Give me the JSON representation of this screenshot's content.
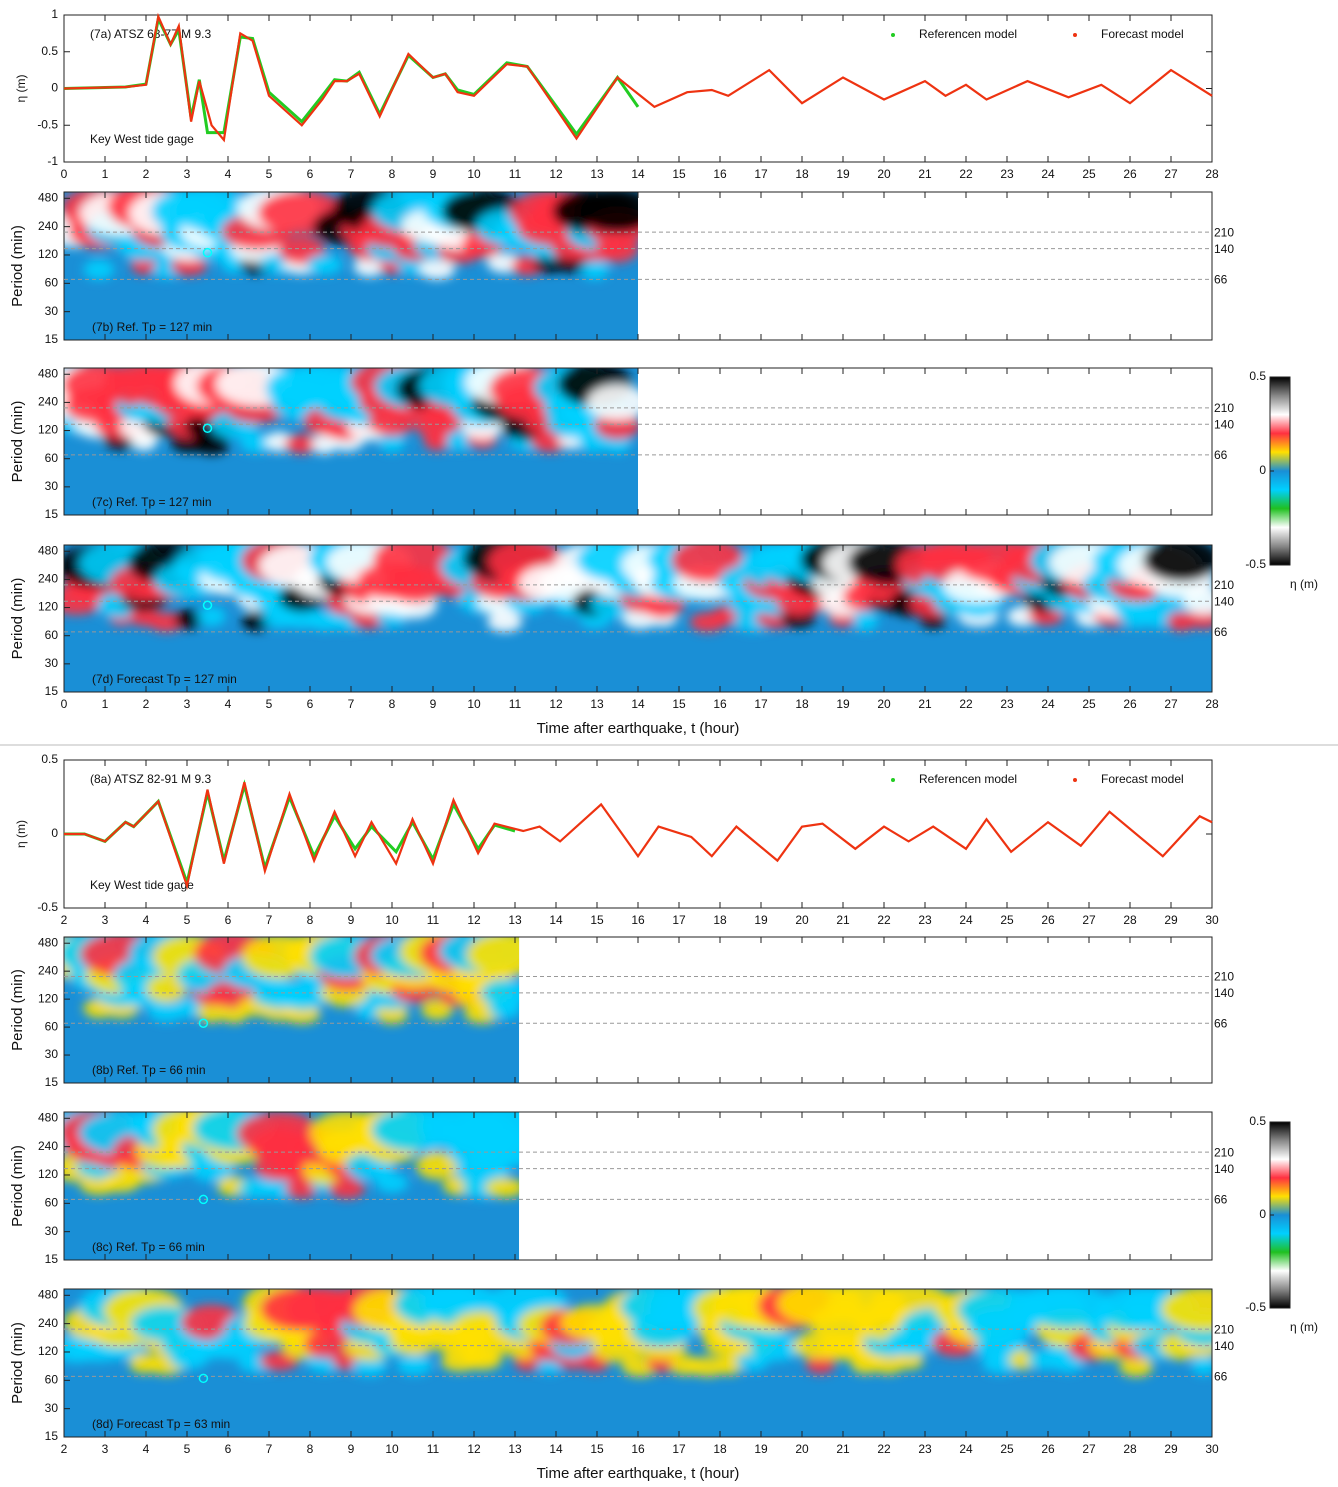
{
  "chart_data": [
    {
      "type": "line",
      "title": "(7a) ATSZ 68-77 M 9.3",
      "annotation": "Key West tide gage",
      "y_label": "η (m)",
      "xlim": [
        0,
        28
      ],
      "xticks": [
        0,
        1,
        2,
        3,
        4,
        5,
        6,
        7,
        8,
        9,
        10,
        11,
        12,
        13,
        14,
        15,
        16,
        17,
        18,
        19,
        20,
        21,
        22,
        23,
        24,
        25,
        26,
        27,
        28
      ],
      "ylim": [
        -1,
        1
      ],
      "yticks": [
        -1,
        -0.5,
        0,
        0.5,
        1
      ],
      "series": [
        {
          "name": "Referencen model",
          "color": "#22cc22",
          "x": [
            0,
            1.5,
            2.0,
            2.3,
            2.6,
            2.8,
            3.1,
            3.3,
            3.5,
            3.9,
            4.3,
            4.6,
            5.0,
            5.8,
            6.3,
            6.6,
            6.9,
            7.2,
            7.7,
            8.4,
            9.0,
            9.3,
            9.6,
            10.0,
            10.8,
            11.3,
            12.5,
            13.5,
            14.0
          ],
          "values": [
            0,
            0.02,
            0.06,
            0.95,
            0.6,
            0.8,
            -0.4,
            0.12,
            -0.6,
            -0.6,
            0.7,
            0.68,
            -0.05,
            -0.45,
            -0.1,
            0.12,
            0.1,
            0.22,
            -0.35,
            0.45,
            0.15,
            0.2,
            -0.02,
            -0.08,
            0.35,
            0.3,
            -0.62,
            0.15,
            -0.25
          ]
        },
        {
          "name": "Forecast model",
          "color": "#ee3311",
          "x": [
            0,
            1.5,
            2.0,
            2.3,
            2.6,
            2.8,
            3.1,
            3.3,
            3.6,
            3.9,
            4.3,
            4.6,
            5.0,
            5.8,
            6.3,
            6.6,
            6.9,
            7.2,
            7.7,
            8.4,
            9.0,
            9.3,
            9.6,
            10.0,
            10.8,
            11.3,
            12.5,
            13.5,
            14.4,
            15.2,
            15.8,
            16.2,
            17.2,
            18.0,
            19.0,
            20.0,
            21.0,
            21.5,
            22.0,
            22.5,
            23.5,
            24.5,
            25.3,
            26.0,
            27.0,
            28.0
          ],
          "values": [
            0,
            0.02,
            0.05,
            0.98,
            0.6,
            0.85,
            -0.45,
            0.1,
            -0.5,
            -0.7,
            0.75,
            0.65,
            -0.1,
            -0.5,
            -0.15,
            0.1,
            0.1,
            0.2,
            -0.38,
            0.47,
            0.15,
            0.2,
            -0.05,
            -0.1,
            0.33,
            0.3,
            -0.68,
            0.15,
            -0.25,
            -0.05,
            -0.02,
            -0.1,
            0.25,
            -0.2,
            0.15,
            -0.15,
            0.1,
            -0.1,
            0.05,
            -0.15,
            0.1,
            -0.12,
            0.05,
            -0.2,
            0.25,
            -0.1
          ]
        }
      ]
    },
    {
      "type": "spectrogram",
      "title": "(7b) Ref. Tp = 127 min",
      "y_label": "Period (min)",
      "xlim": [
        0,
        28
      ],
      "time_span": [
        0,
        14
      ],
      "ylim": [
        15,
        560
      ],
      "yticks": [
        15,
        30,
        60,
        120,
        240,
        480
      ],
      "log_y": true,
      "ref_lines": [
        210,
        140,
        66
      ],
      "peak": {
        "x": 3.5,
        "y": 127
      }
    },
    {
      "type": "spectrogram",
      "title": "(7c) Ref. Tp = 127 min",
      "y_label": "Period (min)",
      "xlim": [
        0,
        28
      ],
      "time_span": [
        0,
        14
      ],
      "ylim": [
        15,
        560
      ],
      "yticks": [
        15,
        30,
        60,
        120,
        240,
        480
      ],
      "log_y": true,
      "ref_lines": [
        210,
        140,
        66
      ],
      "peak": {
        "x": 3.5,
        "y": 127
      }
    },
    {
      "type": "spectrogram",
      "title": "(7d) Forecast Tp = 127 min",
      "y_label": "Period (min)",
      "x_label": "Time after earthquake,  t (hour)",
      "xlim": [
        0,
        28
      ],
      "time_span": [
        0,
        28
      ],
      "ylim": [
        15,
        560
      ],
      "yticks": [
        15,
        30,
        60,
        120,
        240,
        480
      ],
      "log_y": true,
      "ref_lines": [
        210,
        140,
        66
      ],
      "peak": {
        "x": 3.5,
        "y": 127
      }
    },
    {
      "type": "colorbar",
      "label": "η (m)",
      "ylim": [
        -0.5,
        0.5
      ],
      "yticks": [
        -0.5,
        0,
        0.5
      ],
      "colors": [
        "#000000",
        "#888888",
        "#ffffff",
        "#ff3040",
        "#ffe000",
        "#1a8fd6",
        "#00d0ff",
        "#20c020",
        "#ffffff",
        "#888888",
        "#000000"
      ]
    },
    {
      "type": "line",
      "title": "(8a) ATSZ 82-91 M 9.3",
      "annotation": "Key West tide gage",
      "y_label": "η (m)",
      "xlim": [
        2,
        30
      ],
      "xticks": [
        2,
        3,
        4,
        5,
        6,
        7,
        8,
        9,
        10,
        11,
        12,
        13,
        14,
        15,
        16,
        17,
        18,
        19,
        20,
        21,
        22,
        23,
        24,
        25,
        26,
        27,
        28,
        29,
        30
      ],
      "ylim": [
        -0.5,
        0.5
      ],
      "yticks": [
        -0.5,
        0,
        0.5
      ],
      "series": [
        {
          "name": "Referencen model",
          "color": "#22cc22",
          "x": [
            2,
            2.5,
            3,
            3.5,
            3.7,
            4.3,
            5,
            5.5,
            5.9,
            6.4,
            6.9,
            7.5,
            8.1,
            8.6,
            9.1,
            9.5,
            10.1,
            10.5,
            11.0,
            11.5,
            12.1,
            12.5,
            13.0
          ],
          "values": [
            0,
            0,
            -0.05,
            0.08,
            0.05,
            0.22,
            -0.33,
            0.28,
            -0.18,
            0.33,
            -0.23,
            0.25,
            -0.15,
            0.12,
            -0.1,
            0.05,
            -0.12,
            0.08,
            -0.17,
            0.2,
            -0.1,
            0.06,
            0.02
          ]
        },
        {
          "name": "Forecast model",
          "color": "#ee3311",
          "x": [
            2,
            2.5,
            3,
            3.5,
            3.7,
            4.3,
            5,
            5.5,
            5.9,
            6.4,
            6.9,
            7.5,
            8.1,
            8.6,
            9.1,
            9.5,
            10.1,
            10.5,
            11.0,
            11.5,
            12.1,
            12.5,
            13.2,
            13.6,
            14.1,
            15.1,
            16.0,
            16.5,
            17.3,
            17.8,
            18.4,
            19.4,
            20.0,
            20.5,
            21.3,
            22.0,
            22.6,
            23.2,
            24.0,
            24.5,
            25.1,
            26.0,
            26.8,
            27.5,
            28.8,
            29.7,
            30
          ],
          "values": [
            0,
            0,
            -0.05,
            0.08,
            0.05,
            0.22,
            -0.35,
            0.3,
            -0.2,
            0.35,
            -0.25,
            0.27,
            -0.18,
            0.15,
            -0.15,
            0.08,
            -0.2,
            0.1,
            -0.2,
            0.23,
            -0.13,
            0.07,
            0.02,
            0.05,
            -0.05,
            0.2,
            -0.15,
            0.05,
            -0.02,
            -0.15,
            0.05,
            -0.18,
            0.05,
            0.07,
            -0.1,
            0.05,
            -0.05,
            0.05,
            -0.1,
            0.1,
            -0.12,
            0.08,
            -0.08,
            0.15,
            -0.15,
            0.12,
            0.08
          ]
        }
      ]
    },
    {
      "type": "spectrogram",
      "title": "(8b) Ref. Tp = 66 min",
      "y_label": "Period (min)",
      "xlim": [
        2,
        30
      ],
      "time_span": [
        2,
        13.1
      ],
      "ylim": [
        15,
        560
      ],
      "yticks": [
        15,
        30,
        60,
        120,
        240,
        480
      ],
      "log_y": true,
      "ref_lines": [
        210,
        140,
        66
      ],
      "peak": {
        "x": 5.4,
        "y": 66
      }
    },
    {
      "type": "spectrogram",
      "title": "(8c) Ref. Tp = 66 min",
      "y_label": "Period (min)",
      "xlim": [
        2,
        30
      ],
      "time_span": [
        2,
        13.1
      ],
      "ylim": [
        15,
        560
      ],
      "yticks": [
        15,
        30,
        60,
        120,
        240,
        480
      ],
      "log_y": true,
      "ref_lines": [
        210,
        140,
        66
      ],
      "peak": {
        "x": 5.4,
        "y": 66
      }
    },
    {
      "type": "spectrogram",
      "title": "(8d) Forecast Tp = 63 min",
      "y_label": "Period (min)",
      "x_label": "Time after earthquake,  t (hour)",
      "xlim": [
        2,
        30
      ],
      "time_span": [
        2,
        30
      ],
      "ylim": [
        15,
        560
      ],
      "yticks": [
        15,
        30,
        60,
        120,
        240,
        480
      ],
      "log_y": true,
      "ref_lines": [
        210,
        140,
        66
      ],
      "peak": {
        "x": 5.4,
        "y": 63
      }
    },
    {
      "type": "colorbar",
      "label": "η (m)",
      "ylim": [
        -0.5,
        0.5
      ],
      "yticks": [
        -0.5,
        0,
        0.5
      ],
      "colors": [
        "#000000",
        "#888888",
        "#ffffff",
        "#ff3040",
        "#ffe000",
        "#1a8fd6",
        "#00d0ff",
        "#20c020",
        "#ffffff",
        "#888888",
        "#000000"
      ]
    }
  ]
}
